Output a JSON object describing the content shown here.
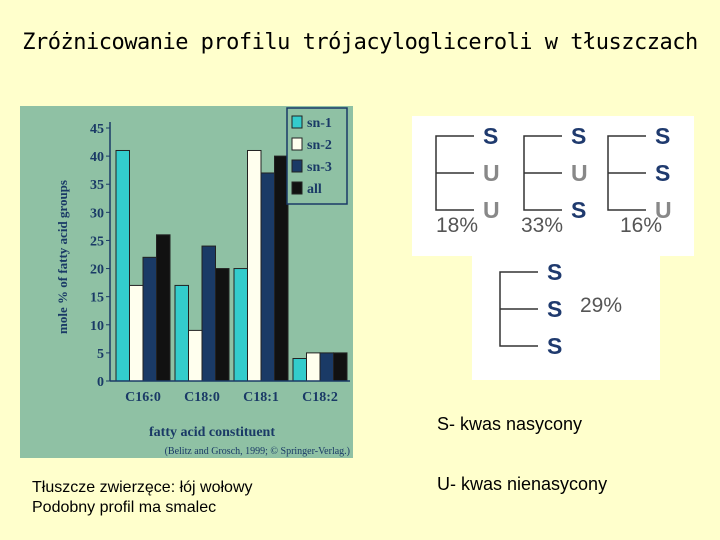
{
  "title": "Zróżnicowanie profilu trójacylogliceroli w tłuszczach",
  "chart_data": {
    "type": "bar",
    "categories": [
      "C16:0",
      "C18:0",
      "C18:1",
      "C18:2"
    ],
    "series": [
      {
        "name": "sn-1",
        "values": [
          41,
          17,
          20,
          4
        ],
        "color": "#33cccc"
      },
      {
        "name": "sn-2",
        "values": [
          17,
          9,
          41,
          5
        ],
        "color": "#ffffee"
      },
      {
        "name": "sn-3",
        "values": [
          22,
          24,
          37,
          5
        ],
        "color": "#1a3a66"
      },
      {
        "name": "all",
        "values": [
          26,
          20,
          40,
          5
        ],
        "color": "#111111"
      }
    ],
    "xlabel": "fatty acid constituent",
    "ylabel": "mole % of fatty acid groups",
    "ylim": [
      0,
      45
    ],
    "yticks": [
      0,
      5,
      10,
      15,
      20,
      25,
      30,
      35,
      40,
      45
    ],
    "legend": "top-right",
    "source": "(Belitz and Grosch, 1999; © Springer-Verlag.)"
  },
  "triglycerides": [
    {
      "positions": [
        "S",
        "U",
        "U"
      ],
      "percent": "18%"
    },
    {
      "positions": [
        "S",
        "U",
        "S"
      ],
      "percent": "33%"
    },
    {
      "positions": [
        "S",
        "S",
        "U"
      ],
      "percent": "16%"
    },
    {
      "positions": [
        "S",
        "S",
        "S"
      ],
      "percent": "29%"
    }
  ],
  "legend_notes": {
    "saturated": "S- kwas nasycony",
    "unsaturated": "U- kwas nienasycony"
  },
  "footnote": {
    "line1": "Tłuszcze zwierzęce: łój wołowy",
    "line2": "Podobny profil ma smalec"
  },
  "colors": {
    "background": "#ffffcc",
    "chart_bg": "#8fc1a4",
    "letter_s": "#1f3a6e",
    "letter_u": "#888888"
  }
}
